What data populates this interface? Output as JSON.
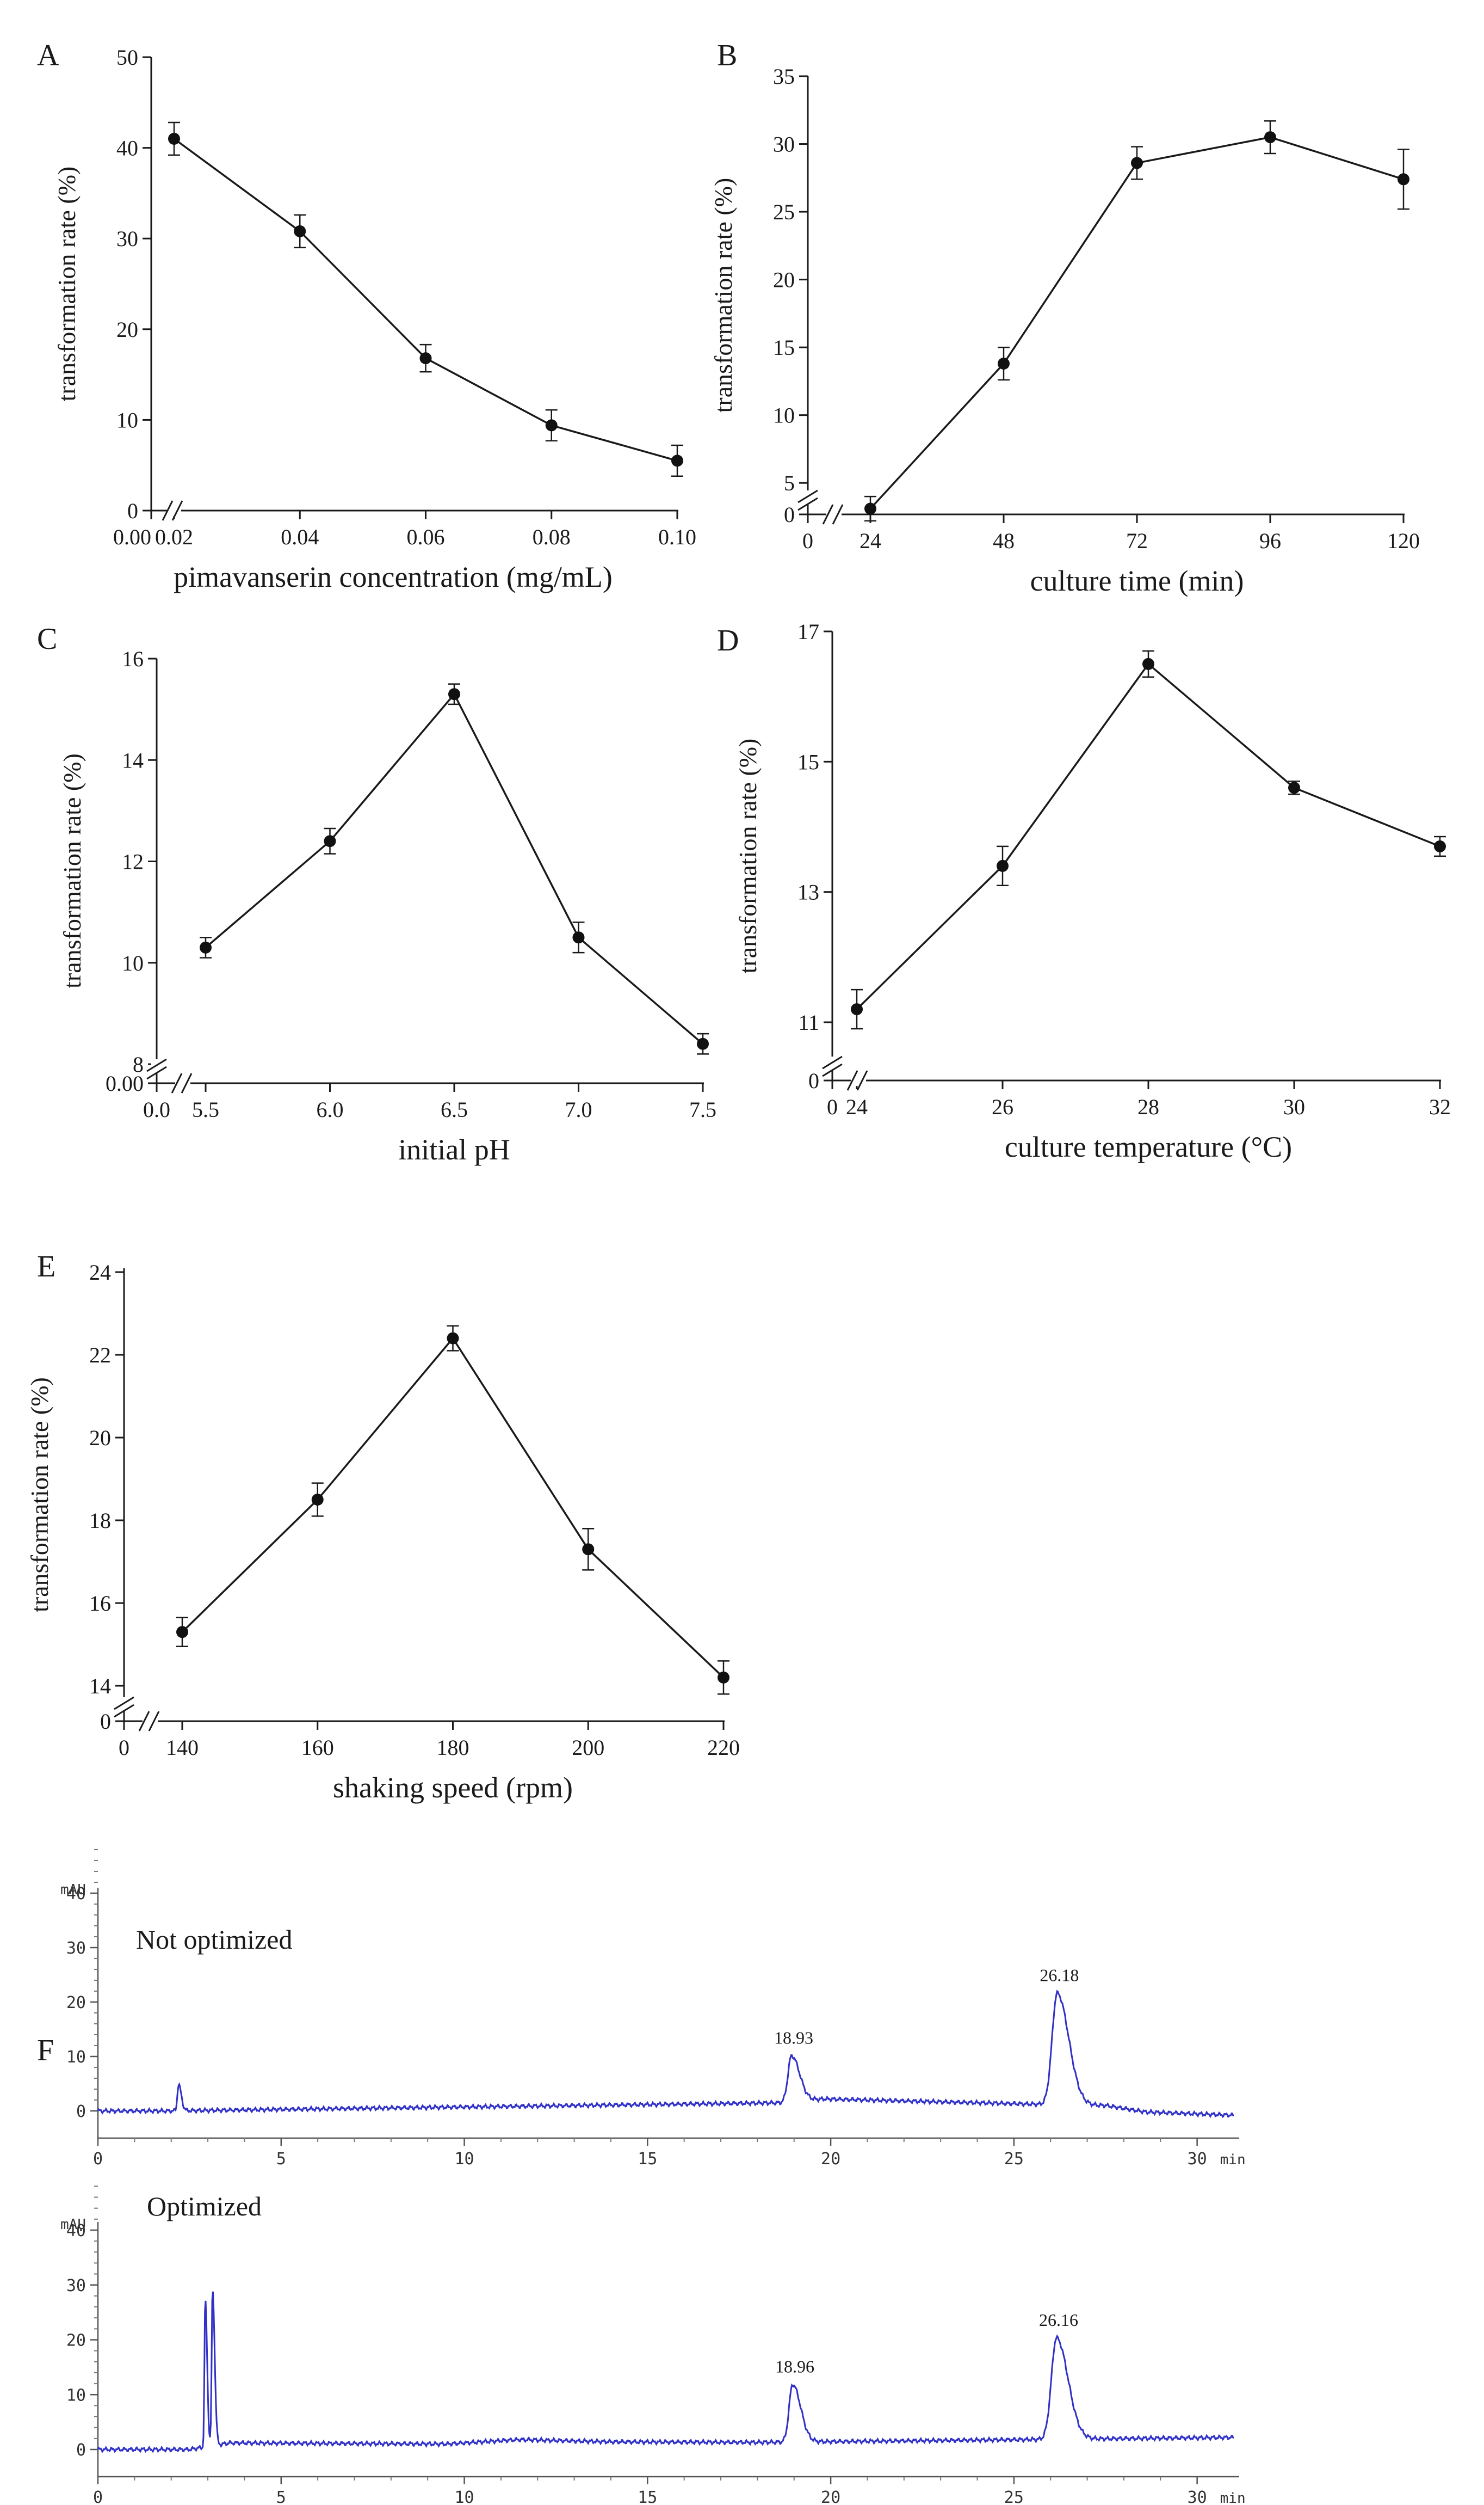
{
  "figure": {
    "panel_labels": [
      "A",
      "B",
      "C",
      "D",
      "E",
      "F"
    ]
  },
  "chart_data": [
    {
      "id": "A",
      "type": "line",
      "xlabel": "pimavanserin concentration (mg/mL)",
      "ylabel": "transformation rate (%)",
      "x": [
        0.02,
        0.04,
        0.06,
        0.08,
        0.1
      ],
      "values": [
        41,
        30.8,
        16.8,
        9.4,
        5.5
      ],
      "errors": [
        1.8,
        1.8,
        1.5,
        1.7,
        1.7
      ],
      "xlim": [
        0.02,
        0.1
      ],
      "ylim": [
        0,
        50
      ],
      "xticks": [
        "0.02",
        "0.04",
        "0.06",
        "0.08",
        "0.10"
      ],
      "xzero_label": "0.00",
      "yticks": [
        "0",
        "10",
        "20",
        "30",
        "40",
        "50"
      ],
      "ytick_values": [
        0,
        10,
        20,
        30,
        40,
        50
      ],
      "axis_break": "x"
    },
    {
      "id": "B",
      "type": "line",
      "xlabel": "culture time (min)",
      "ylabel": "transformation rate (%)",
      "x": [
        24,
        48,
        72,
        96,
        120
      ],
      "values": [
        3.1,
        13.8,
        28.6,
        30.5,
        27.4
      ],
      "errors": [
        0.9,
        1.2,
        1.2,
        1.2,
        2.2
      ],
      "xlim": [
        24,
        120
      ],
      "ylim": [
        3,
        35
      ],
      "xticks": [
        "24",
        "48",
        "72",
        "96",
        "120"
      ],
      "xzero_label": "0",
      "yticks": [
        "5",
        "10",
        "15",
        "20",
        "25",
        "30",
        "35"
      ],
      "ytick_values": [
        5,
        10,
        15,
        20,
        25,
        30,
        35
      ],
      "yzero_label": "0",
      "axis_break": "y"
    },
    {
      "id": "C",
      "type": "line",
      "xlabel": "initial pH",
      "ylabel": "transformation rate (%)",
      "x": [
        5.5,
        6.0,
        6.5,
        7.0,
        7.5
      ],
      "values": [
        10.3,
        12.4,
        15.3,
        10.5,
        8.4
      ],
      "errors": [
        0.2,
        0.25,
        0.2,
        0.3,
        0.2
      ],
      "xlim": [
        5.5,
        7.5
      ],
      "ylim": [
        8,
        16
      ],
      "xticks": [
        "5.5",
        "6.0",
        "6.5",
        "7.0",
        "7.5"
      ],
      "xzero_label": "0.0",
      "yticks": [
        "8",
        "10",
        "12",
        "14",
        "16"
      ],
      "ytick_values": [
        8,
        10,
        12,
        14,
        16
      ],
      "yzero_label": "0.00",
      "axis_break": "y"
    },
    {
      "id": "D",
      "type": "line",
      "xlabel": "culture temperature (°C)",
      "ylabel": "transformation rate (%)",
      "x": [
        24,
        26,
        28,
        30,
        32
      ],
      "values": [
        11.2,
        13.4,
        16.5,
        14.6,
        13.7
      ],
      "errors": [
        0.3,
        0.3,
        0.2,
        0.1,
        0.15
      ],
      "xlim": [
        24,
        32
      ],
      "ylim": [
        11,
        17
      ],
      "xticks": [
        "24",
        "26",
        "28",
        "30",
        "32"
      ],
      "xzero_label": "0",
      "yticks": [
        "11",
        "13",
        "15",
        "17"
      ],
      "ytick_values": [
        11,
        13,
        15,
        17
      ],
      "yzero_label": "0",
      "axis_break": "y"
    },
    {
      "id": "E",
      "type": "line",
      "xlabel": "shaking speed (rpm)",
      "ylabel": "transformation rate (%)",
      "x": [
        140,
        160,
        180,
        200,
        220
      ],
      "values": [
        15.3,
        18.5,
        22.4,
        17.3,
        14.2
      ],
      "errors": [
        0.35,
        0.4,
        0.3,
        0.5,
        0.4
      ],
      "xlim": [
        140,
        220
      ],
      "ylim": [
        14,
        24
      ],
      "xticks": [
        "140",
        "160",
        "180",
        "200",
        "220"
      ],
      "xzero_label": "0",
      "yticks": [
        "14",
        "16",
        "18",
        "20",
        "22",
        "24"
      ],
      "ytick_values": [
        14,
        16,
        18,
        20,
        22,
        24
      ],
      "yzero_label": "0",
      "axis_break": "y"
    },
    {
      "id": "F1",
      "type": "line",
      "title": "Not optimized",
      "yunit": "mAU",
      "xunit": "min",
      "xlim": [
        0,
        31
      ],
      "ylim": [
        -3,
        50
      ],
      "xticks": [
        "0",
        "5",
        "10",
        "15",
        "20",
        "25",
        "30"
      ],
      "xtick_values": [
        0,
        5,
        10,
        15,
        20,
        25,
        30
      ],
      "yticks": [
        "0",
        "10",
        "20",
        "30",
        "40"
      ],
      "ytick_values": [
        0,
        10,
        20,
        30,
        40
      ],
      "baseline": [
        [
          0,
          0
        ],
        [
          1.9,
          0
        ],
        [
          18.7,
          1.5
        ],
        [
          19.8,
          2.2
        ],
        [
          25.8,
          1.2
        ],
        [
          27.5,
          1
        ],
        [
          28.6,
          -0.2
        ],
        [
          31,
          -0.8
        ]
      ],
      "peaks": [
        {
          "rt": 2.2,
          "height": 4.8,
          "width": 0.12,
          "label": ""
        },
        {
          "rt": 18.93,
          "height": 8.5,
          "width": 0.35,
          "label": "18.93"
        },
        {
          "rt": 26.18,
          "height": 20.5,
          "width": 0.5,
          "label": "26.18"
        }
      ]
    },
    {
      "id": "F2",
      "type": "line",
      "title": "Optimized",
      "yunit": "mAU",
      "xunit": "min",
      "xlim": [
        0,
        31
      ],
      "ylim": [
        -3,
        50
      ],
      "xticks": [
        "0",
        "5",
        "10",
        "15",
        "20",
        "25",
        "30"
      ],
      "xtick_values": [
        0,
        5,
        10,
        15,
        20,
        25,
        30
      ],
      "yticks": [
        "0",
        "10",
        "20",
        "30",
        "40"
      ],
      "ytick_values": [
        0,
        10,
        20,
        30,
        40
      ],
      "baseline": [
        [
          0,
          0
        ],
        [
          2.5,
          0
        ],
        [
          3.6,
          1.2
        ],
        [
          9.5,
          1
        ],
        [
          11.5,
          1.8
        ],
        [
          14,
          1.4
        ],
        [
          18,
          1.3
        ],
        [
          31,
          2.2
        ]
      ],
      "peaks": [
        {
          "rt": 2.93,
          "height": 27,
          "width": 0.08,
          "label": ""
        },
        {
          "rt": 3.13,
          "height": 28.5,
          "width": 0.09,
          "label": ""
        },
        {
          "rt": 18.96,
          "height": 10.5,
          "width": 0.35,
          "label": "18.96"
        },
        {
          "rt": 26.16,
          "height": 18.5,
          "width": 0.5,
          "label": "26.16"
        }
      ]
    }
  ]
}
